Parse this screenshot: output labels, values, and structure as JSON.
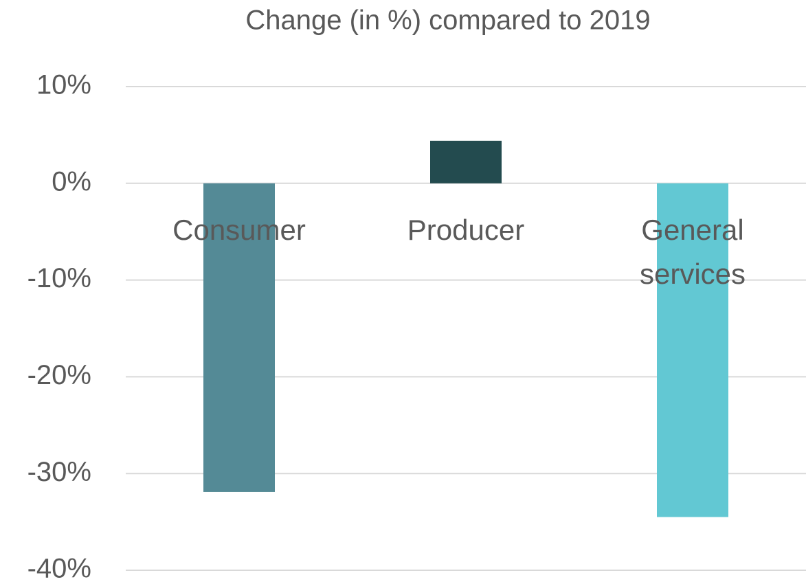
{
  "chart_data": {
    "type": "bar",
    "title": "Change (in %) compared to 2019",
    "categories": [
      "Consumer",
      "Producer",
      "General services"
    ],
    "values": [
      -31.9,
      4.4,
      -34.5
    ],
    "colors": [
      "#548a96",
      "#234b4f",
      "#62c8d3"
    ],
    "ylim": [
      -40,
      10
    ],
    "yticks": [
      {
        "value": 10,
        "label": "10%"
      },
      {
        "value": 0,
        "label": "0%"
      },
      {
        "value": -10,
        "label": "-10%"
      },
      {
        "value": -20,
        "label": "-20%"
      },
      {
        "value": -30,
        "label": "-30%"
      },
      {
        "value": -40,
        "label": "-40%"
      }
    ],
    "grid": true
  }
}
